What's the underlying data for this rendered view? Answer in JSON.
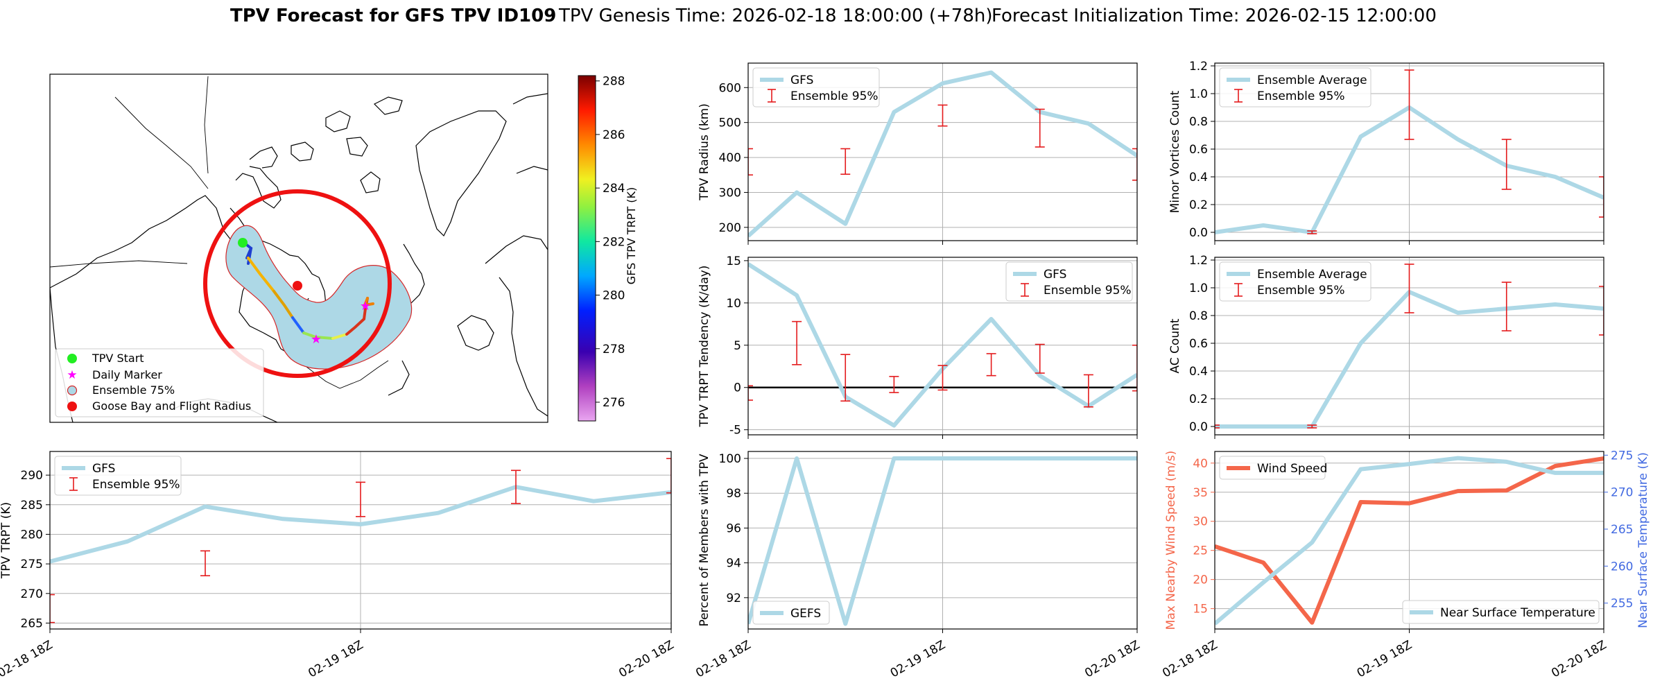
{
  "title": {
    "bold": "TPV Forecast for GFS TPV ID109",
    "genesis": "TPV Genesis Time: 2026-02-18 18:00:00 (+78h)",
    "init": "Forecast Initialization Time: 2026-02-15 12:00:00"
  },
  "colors": {
    "gfs_line": "#add8e6",
    "errorbar": "#e41a1c",
    "wind": "#f4664a",
    "temp_axis": "#4169e1",
    "circle": "#ee1111",
    "map_fill": "#add8e6"
  },
  "map": {
    "colorbar_label": "GFS TPV TRPT (K)",
    "colorbar_ticks": [
      276,
      278,
      280,
      282,
      284,
      286,
      288
    ],
    "colorbar_range": [
      275.3,
      288.2
    ],
    "legend": [
      "TPV Start",
      "Daily Marker",
      "Ensemble 75%",
      "Goose Bay and Flight Radius"
    ]
  },
  "chart_data": [
    {
      "id": "trpt",
      "type": "line",
      "title": "",
      "xlabel": "",
      "ylabel": "TPV TRPT (K)",
      "x": [
        0,
        1,
        2,
        3,
        4,
        5,
        6,
        7,
        8
      ],
      "xlim": [
        0,
        8
      ],
      "xticks": [
        0,
        4,
        8
      ],
      "xticklabels": [
        "02-18 18Z",
        "02-19 18Z",
        "02-20 18Z"
      ],
      "ylim": [
        264,
        294
      ],
      "yticks": [
        265,
        270,
        275,
        280,
        285,
        290
      ],
      "series": [
        {
          "name": "GFS",
          "values": [
            275.4,
            278.8,
            284.7,
            282.6,
            281.7,
            283.6,
            288.0,
            285.6,
            287.1
          ]
        }
      ],
      "errorbars": {
        "name": "Ensemble 95%",
        "x": [
          0,
          2,
          4,
          6,
          8
        ],
        "low": [
          265.1,
          273.0,
          283.0,
          285.2,
          287.0
        ],
        "high": [
          269.8,
          277.2,
          288.8,
          290.8,
          292.8
        ]
      },
      "legend_pos": "upper-left"
    },
    {
      "id": "radius",
      "type": "line",
      "ylabel": "TPV Radius (km)",
      "x": [
        0,
        1,
        2,
        3,
        4,
        5,
        6,
        7,
        8
      ],
      "xlim": [
        0,
        8
      ],
      "xticks": [
        0,
        4,
        8
      ],
      "ylim": [
        162,
        670
      ],
      "yticks": [
        200,
        300,
        400,
        500,
        600
      ],
      "series": [
        {
          "name": "GFS",
          "values": [
            175,
            300,
            210,
            530,
            612,
            643,
            530,
            497,
            405
          ]
        }
      ],
      "errorbars": {
        "name": "Ensemble 95%",
        "x": [
          0,
          2,
          4,
          6,
          8
        ],
        "low": [
          350,
          352,
          490,
          430,
          335
        ],
        "high": [
          425,
          425,
          550,
          538,
          425
        ]
      },
      "legend_pos": "upper-left"
    },
    {
      "id": "tendency",
      "type": "line",
      "ylabel": "TPV TRPT Tendency (K/day)",
      "x": [
        0,
        1,
        2,
        3,
        4,
        5,
        6,
        7,
        8
      ],
      "xlim": [
        0,
        8
      ],
      "xticks": [
        0,
        4,
        8
      ],
      "ylim": [
        -5.6,
        15.4
      ],
      "yticks": [
        -5,
        0,
        5,
        10,
        15
      ],
      "zero_line": true,
      "series": [
        {
          "name": "GFS",
          "values": [
            14.6,
            10.9,
            -1.1,
            -4.5,
            2.2,
            8.1,
            1.4,
            -2.2,
            1.5
          ]
        }
      ],
      "errorbars": {
        "name": "Ensemble 95%",
        "x": [
          0,
          1,
          2,
          3,
          4,
          5,
          6,
          7,
          8
        ],
        "low": [
          -1.5,
          2.7,
          -1.6,
          -0.6,
          -0.3,
          1.4,
          1.7,
          -2.3,
          -0.4
        ],
        "high": [
          0.2,
          7.8,
          3.9,
          1.3,
          2.6,
          4.0,
          5.1,
          1.5,
          5.0
        ]
      },
      "legend_pos": "upper-right"
    },
    {
      "id": "members",
      "type": "line",
      "ylabel": "Percent of Members with TPV",
      "x": [
        0,
        1,
        2,
        3,
        4,
        5,
        6,
        7,
        8
      ],
      "xlim": [
        0,
        8
      ],
      "xticks": [
        0,
        4,
        8
      ],
      "xticklabels": [
        "02-18 18Z",
        "02-19 18Z",
        "02-20 18Z"
      ],
      "ylim": [
        90.2,
        100.4
      ],
      "yticks": [
        92,
        94,
        96,
        98,
        100
      ],
      "series": [
        {
          "name": "GEFS",
          "values": [
            90.5,
            100,
            90.5,
            100,
            100,
            100,
            100,
            100,
            100
          ]
        }
      ],
      "legend_pos": "lower-left"
    },
    {
      "id": "minor",
      "type": "line",
      "ylabel": "Minor Vortices Count",
      "x": [
        0,
        1,
        2,
        3,
        4,
        5,
        6,
        7,
        8
      ],
      "xlim": [
        0,
        8
      ],
      "xticks": [
        0,
        4,
        8
      ],
      "ylim": [
        -0.06,
        1.22
      ],
      "yticks": [
        0.0,
        0.2,
        0.4,
        0.6,
        0.8,
        1.0,
        1.2
      ],
      "series": [
        {
          "name": "Ensemble Average",
          "values": [
            0.0,
            0.05,
            0.0,
            0.69,
            0.9,
            0.67,
            0.48,
            0.4,
            0.25
          ]
        }
      ],
      "errorbars": {
        "name": "Ensemble 95%",
        "x": [
          2,
          4,
          6,
          8
        ],
        "low": [
          -0.01,
          0.67,
          0.31,
          0.11
        ],
        "high": [
          0.01,
          1.17,
          0.67,
          0.4
        ]
      },
      "legend_pos": "upper-left"
    },
    {
      "id": "ac",
      "type": "line",
      "ylabel": "AC Count",
      "x": [
        0,
        1,
        2,
        3,
        4,
        5,
        6,
        7,
        8
      ],
      "xlim": [
        0,
        8
      ],
      "xticks": [
        0,
        4,
        8
      ],
      "ylim": [
        -0.06,
        1.22
      ],
      "yticks": [
        0.0,
        0.2,
        0.4,
        0.6,
        0.8,
        1.0,
        1.2
      ],
      "series": [
        {
          "name": "Ensemble Average",
          "values": [
            0.0,
            0.0,
            0.0,
            0.6,
            0.97,
            0.82,
            0.85,
            0.88,
            0.85
          ]
        }
      ],
      "errorbars": {
        "name": "Ensemble 95%",
        "x": [
          0,
          2,
          4,
          6,
          8
        ],
        "low": [
          -0.01,
          -0.01,
          0.82,
          0.69,
          0.66
        ],
        "high": [
          0.01,
          0.01,
          1.17,
          1.04,
          1.01
        ]
      },
      "legend_pos": "upper-left"
    },
    {
      "id": "wind",
      "type": "line",
      "ylabel": "Max Nearby Wind Speed (m/s)",
      "ylabel_right": "Near Surface Temperature (K)",
      "x": [
        0,
        1,
        2,
        3,
        4,
        5,
        6,
        7,
        8
      ],
      "xlim": [
        0,
        8
      ],
      "xticks": [
        0,
        4,
        8
      ],
      "xticklabels": [
        "02-18 18Z",
        "02-19 18Z",
        "02-20 18Z"
      ],
      "ylim": [
        11.5,
        42
      ],
      "yticks": [
        15,
        20,
        25,
        30,
        35,
        40
      ],
      "ylim_right": [
        251.5,
        275.5
      ],
      "yticks_right": [
        255,
        260,
        265,
        270,
        275
      ],
      "series": [
        {
          "name": "Wind Speed",
          "axis": "left",
          "values": [
            25.7,
            22.9,
            12.6,
            33.3,
            33.1,
            35.2,
            35.3,
            39.5,
            40.8
          ]
        },
        {
          "name": "Near Surface Temperature",
          "axis": "right",
          "values": [
            252.2,
            257.8,
            263.2,
            273.1,
            273.8,
            274.6,
            274.1,
            272.6,
            272.6
          ]
        }
      ],
      "legend_pos": "upper-left / lower-right"
    }
  ]
}
